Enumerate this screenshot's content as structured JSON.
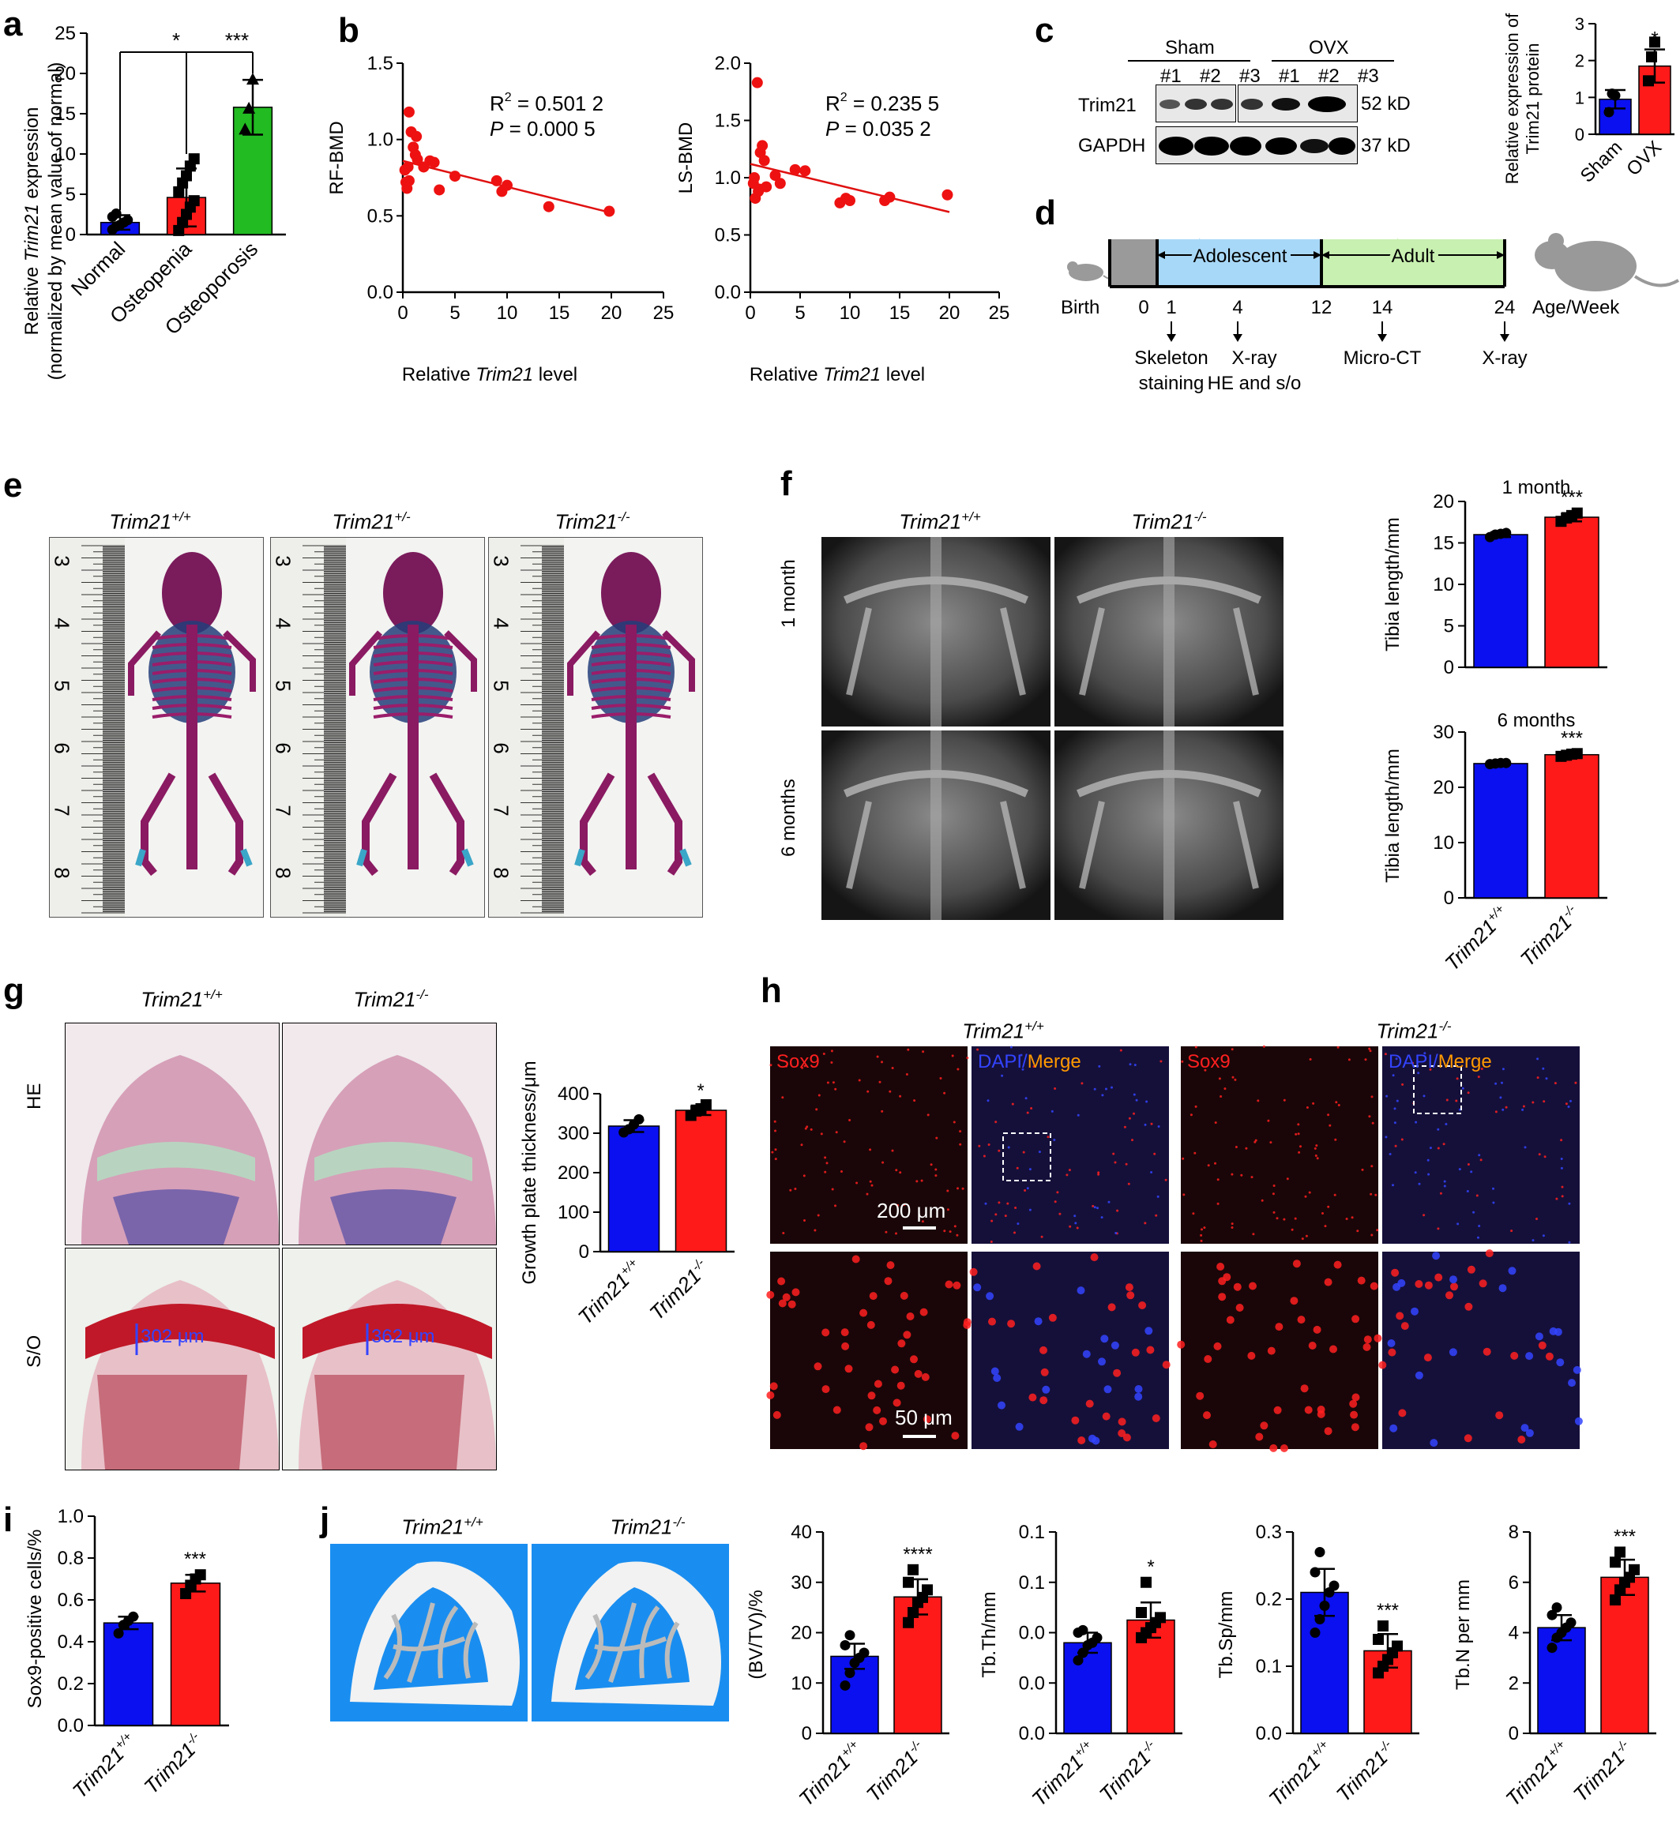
{
  "colors": {
    "blue": "#0a10f0",
    "red": "#ff1a1a",
    "green": "#22bb22",
    "line": "#e01010",
    "point": "#ee1111",
    "sox": "#ff2020",
    "dapi": "#3344ff",
    "merge": "#ff9900",
    "scale_text": "#ffffff"
  },
  "panel_labels": {
    "a": "a",
    "b": "b",
    "c": "c",
    "d": "d",
    "e": "e",
    "f": "f",
    "g": "g",
    "h": "h",
    "i": "i",
    "j": "j"
  },
  "genotypes": {
    "wt": "Trim21",
    "het": "Trim21",
    "ko": "Trim21",
    "wt_sup": "+/+",
    "het_sup": "+/-",
    "ko_sup": "-/-"
  },
  "panel_a": {
    "ylabel_line1_pre": "Relative ",
    "ylabel_line1_em": "Trim21",
    "ylabel_line1_post": " expression",
    "ylabel_line2": "(normalized by mean value of normal)",
    "sig_1": "*",
    "sig_2": "***",
    "chart_data": {
      "type": "bar",
      "categories": [
        "Normal",
        "Osteopenia",
        "Osteoporosis"
      ],
      "values": [
        1.5,
        4.6,
        15.8
      ],
      "errors": [
        0.9,
        3.6,
        3.4
      ],
      "ylim": [
        0,
        25
      ],
      "yticks": [
        0,
        5,
        10,
        15,
        20,
        25
      ],
      "points": [
        [
          0.6,
          1.0,
          1.2,
          1.5,
          1.8,
          2.2,
          2.6
        ],
        [
          0.5,
          1.5,
          2.5,
          3.4,
          4.2,
          5.3,
          6.4,
          7.3,
          8.5,
          9.4
        ],
        [
          13.0,
          15.6,
          19.2
        ]
      ]
    }
  },
  "panel_b": {
    "xlabel_pre": "Relative ",
    "xlabel_em": "Trim21",
    "xlabel_post": " level",
    "left": {
      "ylabel": "RF-BMD",
      "r2": "R",
      "r2_sup": "2",
      "r2_val": " = 0.501 2",
      "p": "P",
      "p_val": " = 0.000 5",
      "chart_data": {
        "type": "scatter",
        "xlim": [
          0,
          25
        ],
        "ylim": [
          0,
          1.5
        ],
        "xticks": [
          0,
          5,
          10,
          15,
          20,
          25
        ],
        "yticks": [
          0.0,
          0.5,
          1.0,
          1.5
        ],
        "x": [
          0.3,
          0.5,
          0.6,
          0.8,
          1.0,
          1.2,
          1.4,
          0.2,
          0.4,
          0.6,
          1.3,
          2.0,
          2.6,
          3.0,
          3.5,
          5.0,
          9.0,
          9.5,
          10.0,
          14.0,
          19.8
        ],
        "y": [
          0.72,
          0.82,
          1.18,
          1.05,
          0.95,
          0.9,
          0.87,
          0.8,
          0.68,
          0.73,
          1.02,
          0.82,
          0.86,
          0.85,
          0.67,
          0.76,
          0.73,
          0.66,
          0.7,
          0.56,
          0.53
        ],
        "fit": [
          [
            0,
            0.86
          ],
          [
            20,
            0.52
          ]
        ]
      }
    },
    "right": {
      "ylabel": "LS-BMD",
      "r2": "R",
      "r2_sup": "2",
      "r2_val": " = 0.235 5",
      "p": "P",
      "p_val": " = 0.035 2",
      "chart_data": {
        "type": "scatter",
        "xlim": [
          0,
          25
        ],
        "ylim": [
          0,
          2.0
        ],
        "xticks": [
          0,
          5,
          10,
          15,
          20,
          25
        ],
        "yticks": [
          0.0,
          0.5,
          1.0,
          1.5,
          2.0
        ],
        "x": [
          0.3,
          0.5,
          0.7,
          0.9,
          1.0,
          1.2,
          1.4,
          1.6,
          0.4,
          0.8,
          2.5,
          3.0,
          4.5,
          5.5,
          9.0,
          9.6,
          10.0,
          13.5,
          14.0,
          19.8
        ],
        "y": [
          0.95,
          0.82,
          1.83,
          0.9,
          1.22,
          1.28,
          1.15,
          0.92,
          1.0,
          0.88,
          1.02,
          0.95,
          1.07,
          1.06,
          0.78,
          0.82,
          0.8,
          0.8,
          0.83,
          0.85
        ],
        "fit": [
          [
            0,
            1.12
          ],
          [
            20,
            0.7
          ]
        ]
      }
    }
  },
  "panel_c": {
    "sham": "Sham",
    "ovx": "OVX",
    "lanes": [
      "#1",
      "#2",
      "#3",
      "#1",
      "#2",
      "#3"
    ],
    "trim21": "Trim21",
    "gapdh": "GAPDH",
    "kd52": "52 kD",
    "kd37": "37 kD",
    "ylabel_1": "Relative expression of",
    "ylabel_2": "Trim21 protein",
    "sig": "*",
    "chart_data": {
      "type": "bar",
      "categories": [
        "Sham",
        "OVX"
      ],
      "values": [
        0.95,
        1.85
      ],
      "errors": [
        0.25,
        0.45
      ],
      "ylim": [
        0,
        3
      ],
      "yticks": [
        0,
        1,
        2,
        3
      ],
      "points": [
        [
          0.6,
          1.1,
          1.05
        ],
        [
          1.45,
          2.1,
          2.5
        ]
      ]
    }
  },
  "panel_d": {
    "adolescent": "Adolescent",
    "adult": "Adult",
    "birth": "Birth",
    "age": "Age/Week",
    "ticks": [
      "0",
      "1",
      "4",
      "12",
      "14",
      "24"
    ],
    "ev1a": "Skeleton",
    "ev1b": "staining",
    "ev2a": "X-ray",
    "ev2b": "HE and s/o",
    "ev3": "Micro-CT",
    "ev4": "X-ray"
  },
  "panel_e": {
    "ruler_numbers": [
      "3",
      "4",
      "5",
      "6",
      "7",
      "8"
    ]
  },
  "panel_f": {
    "row1": "1 month",
    "row2": "6 months",
    "title1": "1 month",
    "title2": "6 months",
    "ylabel": "Tibia length/mm",
    "sig1": "***",
    "sig2": "***",
    "chart_data": [
      {
        "type": "bar",
        "title": "1 month",
        "categories": [
          "Trim21+/+",
          "Trim21-/-"
        ],
        "values": [
          16.0,
          18.1
        ],
        "errors": [
          0.3,
          0.5
        ],
        "ylim": [
          0,
          20
        ],
        "yticks": [
          0,
          5,
          10,
          15,
          20
        ],
        "points": [
          [
            15.7,
            16.0,
            16.1,
            16.2
          ],
          [
            17.6,
            18.0,
            18.3,
            18.6
          ]
        ]
      },
      {
        "type": "bar",
        "title": "6 months",
        "categories": [
          "Trim21+/+",
          "Trim21-/-"
        ],
        "values": [
          24.3,
          25.9
        ],
        "errors": [
          0.2,
          0.3
        ],
        "ylim": [
          0,
          30
        ],
        "yticks": [
          0,
          10,
          20,
          30
        ],
        "points": [
          [
            24.2,
            24.3,
            24.4,
            24.4
          ],
          [
            25.6,
            25.8,
            26.0,
            26.1
          ]
        ]
      }
    ]
  },
  "panel_g": {
    "he": "HE",
    "so": "S/O",
    "m1": "302 μm",
    "m2": "362 μm",
    "ylabel": "Growth plate thickness/μm",
    "sig": "*",
    "chart_data": {
      "type": "bar",
      "categories": [
        "Trim21+/+",
        "Trim21-/-"
      ],
      "values": [
        318,
        358
      ],
      "errors": [
        15,
        12
      ],
      "ylim": [
        0,
        400
      ],
      "yticks": [
        0,
        100,
        200,
        300,
        400
      ],
      "points": [
        [
          302,
          310,
          322,
          335
        ],
        [
          345,
          356,
          362,
          372
        ]
      ]
    }
  },
  "panel_h": {
    "sox9": "Sox9",
    "dapi": "DAPI",
    "slash": "/",
    "merge": "Merge",
    "scale1": "200 μm",
    "scale2": "50 μm"
  },
  "panel_i": {
    "ylabel": "Sox9-positive cells/%",
    "sig": "***",
    "chart_data": {
      "type": "bar",
      "categories": [
        "Trim21+/+",
        "Trim21-/-"
      ],
      "values": [
        0.49,
        0.68
      ],
      "errors": [
        0.03,
        0.04
      ],
      "ylim": [
        0,
        1.0
      ],
      "yticks": [
        0.0,
        0.2,
        0.4,
        0.6,
        0.8,
        1.0
      ],
      "points": [
        [
          0.44,
          0.48,
          0.5,
          0.52
        ],
        [
          0.63,
          0.67,
          0.7,
          0.72
        ]
      ]
    }
  },
  "panel_j": {
    "charts": [
      {
        "ylabel": "(BV/TV)/%",
        "sig": "****",
        "chart_data": {
          "type": "bar",
          "categories": [
            "Trim21+/+",
            "Trim21-/-"
          ],
          "values": [
            15.3,
            27.1
          ],
          "errors": [
            2.5,
            3.5
          ],
          "ylim": [
            0,
            40
          ],
          "yticks": [
            0,
            10,
            20,
            30,
            40
          ],
          "points": [
            [
              9.5,
              12.0,
              14.0,
              15.0,
              16.0,
              17.5,
              19.5
            ],
            [
              22.0,
              24.0,
              26.0,
              27.0,
              28.5,
              30.0,
              32.5
            ]
          ]
        }
      },
      {
        "ylabel": "Tb.Th/mm",
        "sig": "*",
        "chart_data": {
          "type": "bar",
          "categories": [
            "Trim21+/+",
            "Trim21-/-"
          ],
          "values": [
            0.036,
            0.045
          ],
          "errors": [
            0.004,
            0.007
          ],
          "ylim": [
            0,
            0.08
          ],
          "yticks": [
            0.0,
            0.02,
            0.04,
            0.06,
            0.08
          ],
          "points": [
            [
              0.029,
              0.032,
              0.035,
              0.036,
              0.038,
              0.04,
              0.041
            ],
            [
              0.038,
              0.04,
              0.042,
              0.044,
              0.046,
              0.048,
              0.06
            ]
          ]
        }
      },
      {
        "ylabel": "Tb.Sp/mm",
        "sig": "***",
        "chart_data": {
          "type": "bar",
          "categories": [
            "Trim21+/+",
            "Trim21-/-"
          ],
          "values": [
            0.21,
            0.123
          ],
          "errors": [
            0.035,
            0.025
          ],
          "ylim": [
            0,
            0.3
          ],
          "yticks": [
            0.0,
            0.1,
            0.2,
            0.3
          ],
          "points": [
            [
              0.15,
              0.17,
              0.19,
              0.21,
              0.22,
              0.24,
              0.27
            ],
            [
              0.09,
              0.1,
              0.11,
              0.12,
              0.13,
              0.14,
              0.16
            ]
          ]
        }
      },
      {
        "ylabel": "Tb.N per mm",
        "sig": "***",
        "chart_data": {
          "type": "bar",
          "categories": [
            "Trim21+/+",
            "Trim21-/-"
          ],
          "values": [
            4.2,
            6.2
          ],
          "errors": [
            0.5,
            0.7
          ],
          "ylim": [
            0,
            8
          ],
          "yticks": [
            0,
            2,
            4,
            6,
            8
          ],
          "points": [
            [
              3.4,
              3.8,
              4.0,
              4.2,
              4.4,
              4.7,
              5.0
            ],
            [
              5.3,
              5.7,
              6.0,
              6.2,
              6.5,
              6.8,
              7.2
            ]
          ]
        }
      }
    ]
  }
}
